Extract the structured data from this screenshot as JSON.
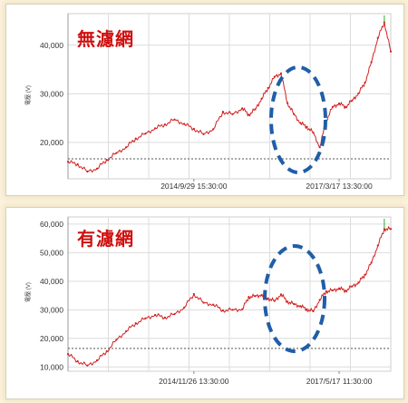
{
  "colors": {
    "line": "#d21f1f",
    "marker": "#1f5ea8",
    "last_segment": "#2ea82e",
    "grid": "#dcdcdc",
    "dotted": "#555555",
    "background": "#fbf3de"
  },
  "chart_data": [
    {
      "type": "line",
      "title": "無濾網",
      "ylabel": "電壓 (V)",
      "ylim": [
        12500,
        46500
      ],
      "y_ticks": [
        "20,000",
        "30,000",
        "40,000"
      ],
      "y_tick_values": [
        20000,
        30000,
        40000
      ],
      "x_tick_labels": [
        "2014/9/29 15:30:00",
        "2017/3/17 13:30:00"
      ],
      "reference_line": 16600,
      "annotation": "blue dashed ellipse marking dip region",
      "x": [
        0,
        0.03,
        0.06,
        0.09,
        0.12,
        0.15,
        0.18,
        0.21,
        0.24,
        0.27,
        0.3,
        0.33,
        0.36,
        0.39,
        0.42,
        0.45,
        0.48,
        0.51,
        0.54,
        0.56,
        0.58,
        0.6,
        0.62,
        0.64,
        0.66,
        0.68,
        0.7,
        0.72,
        0.74,
        0.76,
        0.78,
        0.8,
        0.82,
        0.84,
        0.86,
        0.88,
        0.9,
        0.92,
        0.94,
        0.96,
        0.98,
        1.0
      ],
      "values": [
        16000,
        15500,
        14000,
        14600,
        16400,
        17800,
        19000,
        20800,
        21800,
        22900,
        23700,
        24700,
        23800,
        22800,
        21700,
        22700,
        26300,
        25800,
        27000,
        25700,
        26800,
        29000,
        31200,
        33500,
        34200,
        28100,
        25800,
        24000,
        23200,
        22000,
        19000,
        24500,
        27300,
        28000,
        27300,
        28600,
        30100,
        32300,
        36500,
        41500,
        44700,
        38700
      ]
    },
    {
      "type": "line",
      "title": "有濾網",
      "ylabel": "電壓 (V)",
      "ylim": [
        8500,
        62500
      ],
      "y_ticks": [
        "10,000",
        "20,000",
        "30,000",
        "40,000",
        "50,000",
        "60,000"
      ],
      "y_tick_values": [
        10000,
        20000,
        30000,
        40000,
        50000,
        60000
      ],
      "x_tick_labels": [
        "2014/11/26 13:30:00",
        "2017/5/17 11:30:00"
      ],
      "reference_line": 16500,
      "annotation": "blue dashed ellipse marking dip region",
      "x": [
        0,
        0.03,
        0.06,
        0.09,
        0.12,
        0.15,
        0.18,
        0.21,
        0.24,
        0.27,
        0.3,
        0.33,
        0.36,
        0.39,
        0.42,
        0.45,
        0.48,
        0.51,
        0.54,
        0.56,
        0.58,
        0.6,
        0.62,
        0.64,
        0.66,
        0.68,
        0.7,
        0.72,
        0.74,
        0.76,
        0.78,
        0.8,
        0.82,
        0.84,
        0.86,
        0.88,
        0.9,
        0.92,
        0.94,
        0.96,
        0.98,
        1.0
      ],
      "values": [
        14500,
        12000,
        10500,
        12300,
        15500,
        19500,
        22500,
        25300,
        27000,
        28200,
        27300,
        28500,
        30800,
        35500,
        32500,
        31800,
        29800,
        30000,
        30200,
        34500,
        34800,
        35200,
        34000,
        33100,
        35400,
        32900,
        32000,
        31300,
        30200,
        29500,
        33500,
        36500,
        36800,
        37500,
        36700,
        38200,
        39500,
        42300,
        46500,
        52500,
        58300,
        58300
      ]
    }
  ]
}
